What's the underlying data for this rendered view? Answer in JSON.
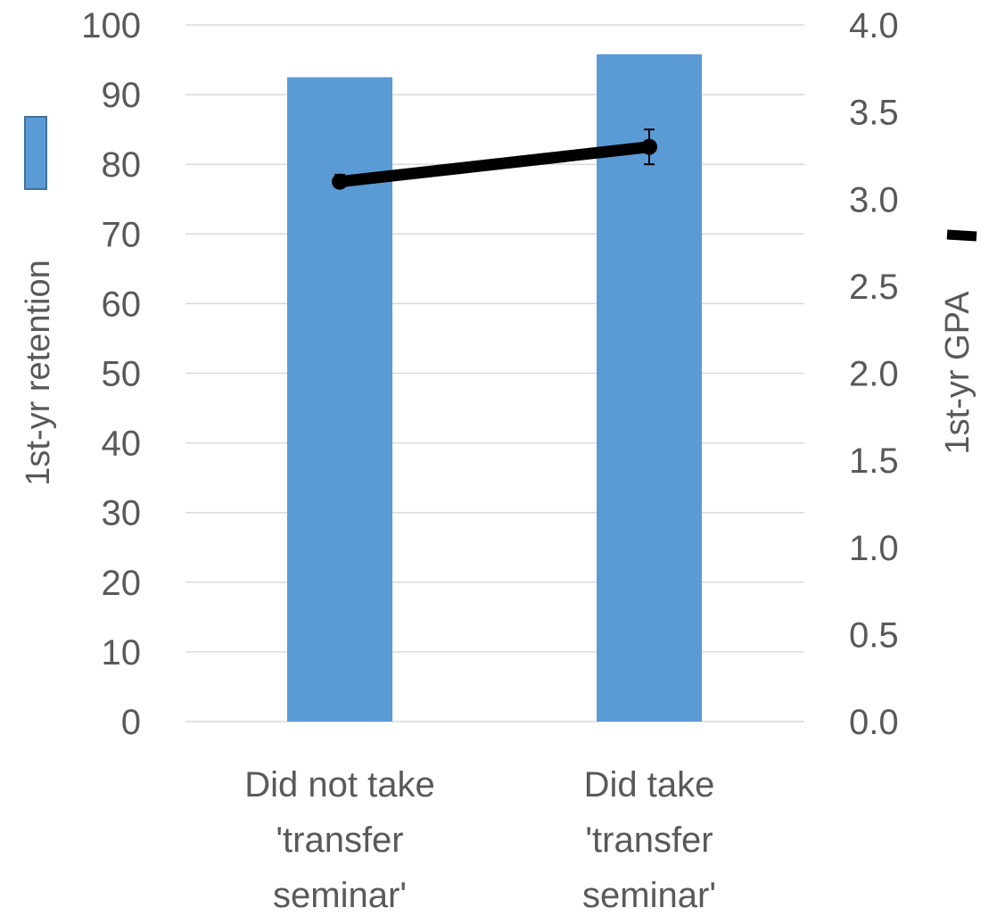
{
  "chart_data": {
    "type": "bar",
    "categories": [
      [
        "Did not take",
        "'transfer",
        "seminar'"
      ],
      [
        "Did take",
        "'transfer",
        "seminar'"
      ]
    ],
    "left_axis": {
      "label": "1st-yr retention",
      "ylim": [
        0,
        100
      ],
      "ticks": [
        "0",
        "10",
        "20",
        "30",
        "40",
        "50",
        "60",
        "70",
        "80",
        "90",
        "100"
      ]
    },
    "right_axis": {
      "label": "1st-yr GPA",
      "ylim": [
        0,
        4
      ],
      "ticks": [
        "0.0",
        "0.5",
        "1.0",
        "1.5",
        "2.0",
        "2.5",
        "3.0",
        "3.5",
        "4.0"
      ]
    },
    "series": [
      {
        "type": "bar",
        "axis": "left",
        "color": "#5b9bd5",
        "values": [
          92.5,
          95.8
        ]
      },
      {
        "type": "line",
        "axis": "right",
        "color": "#000000",
        "values": [
          3.1,
          3.3
        ],
        "error_low": [
          3.07,
          3.2
        ],
        "error_high": [
          3.14,
          3.4
        ]
      }
    ],
    "grid": true,
    "legend": "axis-title markers"
  }
}
